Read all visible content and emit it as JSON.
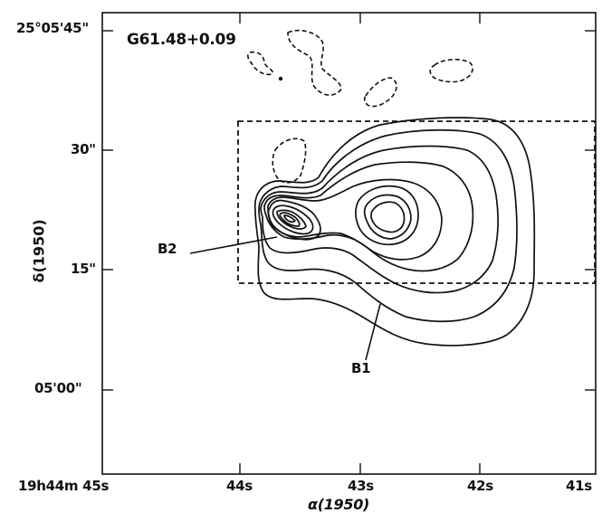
{
  "figure": {
    "title": "G61.48+0.09",
    "xlabel": "α(1950)",
    "ylabel": "δ(1950)",
    "x_ticks": [
      {
        "label": "19h44m 45s",
        "sec": 45
      },
      {
        "label": "44s",
        "sec": 44
      },
      {
        "label": "43s",
        "sec": 43
      },
      {
        "label": "42s",
        "sec": 42
      },
      {
        "label": "41s",
        "sec": 41
      }
    ],
    "y_ticks": [
      {
        "label": "25°05'45\"",
        "arcsec": 45
      },
      {
        "label": "30\"",
        "arcsec": 30
      },
      {
        "label": "15\"",
        "arcsec": 15
      },
      {
        "label": "05'00\"",
        "arcsec": 0
      }
    ],
    "sources": [
      {
        "label": "B2"
      },
      {
        "label": "B1"
      }
    ],
    "styles": {
      "contour_color": "#111111",
      "frame_color": "#111111",
      "box_dash": "5,4",
      "negative_dash": "5,3"
    }
  }
}
